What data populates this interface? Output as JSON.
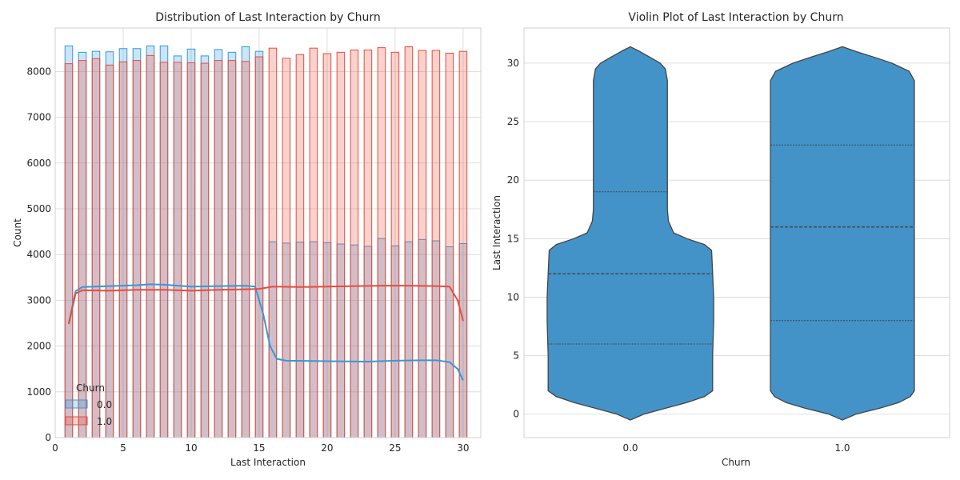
{
  "chart_data": [
    {
      "type": "histogram",
      "title": "Distribution of Last Interaction by Churn",
      "xlabel": "Last Interaction",
      "ylabel": "Count",
      "xlim": [
        0,
        31.3
      ],
      "ylim": [
        0,
        8950
      ],
      "xticks": [
        0,
        5,
        10,
        15,
        20,
        25,
        30
      ],
      "yticks": [
        0,
        1000,
        2000,
        3000,
        4000,
        5000,
        6000,
        7000,
        8000
      ],
      "grid": true,
      "legend": {
        "title": "Churn",
        "position": "lower-left",
        "entries": [
          "0.0",
          "1.0"
        ]
      },
      "x": [
        1,
        2,
        3,
        4,
        5,
        6,
        7,
        8,
        9,
        10,
        11,
        12,
        13,
        14,
        15,
        16,
        17,
        18,
        19,
        20,
        21,
        22,
        23,
        24,
        25,
        26,
        27,
        28,
        29,
        30
      ],
      "series": [
        {
          "name": "0.0",
          "color": "#3498db",
          "values": [
            8560,
            8420,
            8440,
            8430,
            8500,
            8500,
            8560,
            8560,
            8340,
            8490,
            8340,
            8480,
            8420,
            8540,
            8440,
            4280,
            4250,
            4270,
            4280,
            4260,
            4230,
            4210,
            4180,
            4350,
            4190,
            4280,
            4330,
            4300,
            4170,
            4240
          ],
          "kde": [
            [
              1,
              2500
            ],
            [
              1.5,
              3200
            ],
            [
              2,
              3290
            ],
            [
              4,
              3310
            ],
            [
              6,
              3330
            ],
            [
              7,
              3350
            ],
            [
              8,
              3340
            ],
            [
              10,
              3300
            ],
            [
              12,
              3310
            ],
            [
              14,
              3320
            ],
            [
              14.7,
              3300
            ],
            [
              15.3,
              2700
            ],
            [
              15.8,
              2000
            ],
            [
              16.3,
              1720
            ],
            [
              17,
              1680
            ],
            [
              20,
              1670
            ],
            [
              23,
              1660
            ],
            [
              25,
              1680
            ],
            [
              27,
              1690
            ],
            [
              28,
              1690
            ],
            [
              29,
              1650
            ],
            [
              29.6,
              1500
            ],
            [
              30,
              1250
            ]
          ]
        },
        {
          "name": "1.0",
          "color": "#e74c3c",
          "values": [
            8170,
            8240,
            8280,
            8140,
            8210,
            8240,
            8350,
            8200,
            8200,
            8190,
            8180,
            8240,
            8240,
            8220,
            8320,
            8510,
            8290,
            8370,
            8510,
            8390,
            8420,
            8470,
            8470,
            8520,
            8420,
            8540,
            8460,
            8460,
            8400,
            8440
          ],
          "kde": [
            [
              1,
              2480
            ],
            [
              1.5,
              3150
            ],
            [
              2,
              3220
            ],
            [
              4,
              3210
            ],
            [
              6,
              3230
            ],
            [
              8,
              3230
            ],
            [
              10,
              3210
            ],
            [
              12,
              3230
            ],
            [
              14,
              3240
            ],
            [
              15,
              3250
            ],
            [
              16,
              3300
            ],
            [
              18,
              3290
            ],
            [
              20,
              3300
            ],
            [
              22,
              3310
            ],
            [
              24,
              3320
            ],
            [
              26,
              3320
            ],
            [
              28,
              3310
            ],
            [
              29,
              3300
            ],
            [
              29.6,
              3000
            ],
            [
              30,
              2550
            ]
          ]
        }
      ]
    },
    {
      "type": "violin",
      "title": "Violin Plot of Last Interaction by Churn",
      "xlabel": "Churn",
      "ylabel": "Last Interaction",
      "categories": [
        "0.0",
        "1.0"
      ],
      "ylim": [
        -2.0,
        33.0
      ],
      "yticks": [
        0,
        5,
        10,
        15,
        20,
        25,
        30
      ],
      "grid": true,
      "color": "#4393c8",
      "violins": [
        {
          "name": "0.0",
          "quartiles": [
            6,
            12,
            19
          ],
          "density": [
            [
              -0.5,
              0.0
            ],
            [
              0,
              0.13
            ],
            [
              0.5,
              0.34
            ],
            [
              1,
              0.55
            ],
            [
              1.5,
              0.72
            ],
            [
              2,
              0.8
            ],
            [
              3,
              0.8
            ],
            [
              5,
              0.8
            ],
            [
              8,
              0.81
            ],
            [
              10,
              0.81
            ],
            [
              12,
              0.8
            ],
            [
              14,
              0.79
            ],
            [
              14.5,
              0.72
            ],
            [
              15,
              0.55
            ],
            [
              15.5,
              0.42
            ],
            [
              16.5,
              0.37
            ],
            [
              17.5,
              0.36
            ],
            [
              20,
              0.36
            ],
            [
              25,
              0.36
            ],
            [
              28.5,
              0.36
            ],
            [
              29.5,
              0.34
            ],
            [
              30,
              0.29
            ],
            [
              30.5,
              0.19
            ],
            [
              31,
              0.09
            ],
            [
              31.4,
              0.0
            ]
          ]
        },
        {
          "name": "1.0",
          "quartiles": [
            8,
            16,
            23
          ],
          "density": [
            [
              -0.5,
              0.0
            ],
            [
              0,
              0.13
            ],
            [
              0.5,
              0.36
            ],
            [
              1,
              0.55
            ],
            [
              1.5,
              0.66
            ],
            [
              2,
              0.7
            ],
            [
              5,
              0.7
            ],
            [
              10,
              0.7
            ],
            [
              15,
              0.7
            ],
            [
              20,
              0.7
            ],
            [
              25,
              0.7
            ],
            [
              28.5,
              0.7
            ],
            [
              29.3,
              0.65
            ],
            [
              30,
              0.48
            ],
            [
              30.5,
              0.31
            ],
            [
              31,
              0.13
            ],
            [
              31.4,
              0.0
            ]
          ]
        }
      ]
    }
  ]
}
